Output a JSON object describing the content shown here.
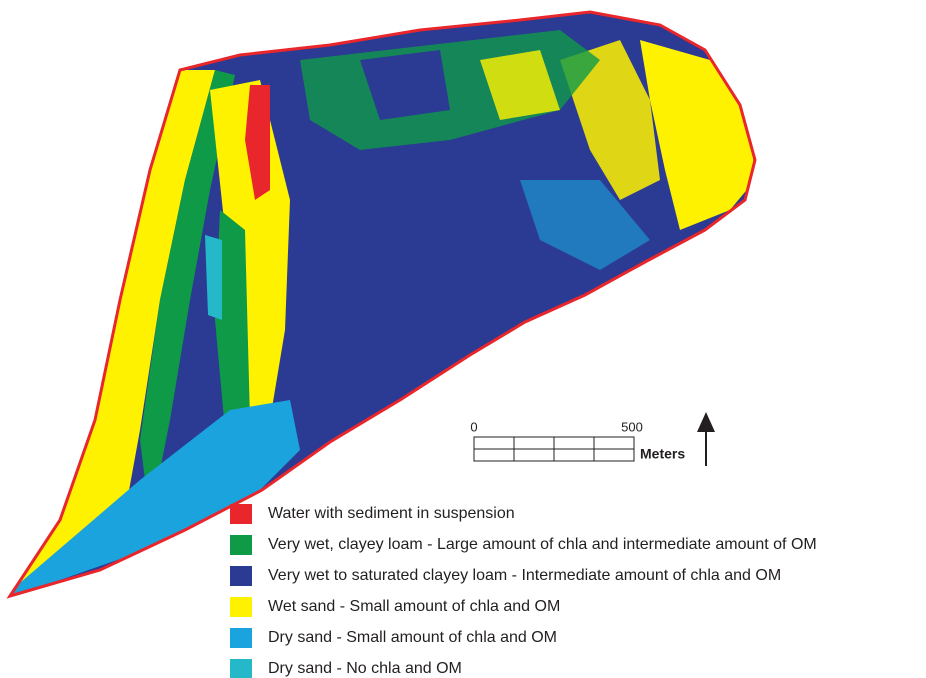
{
  "scale_bar": {
    "start_label": "0",
    "end_label": "500",
    "unit": "Meters"
  },
  "legend": {
    "items": [
      {
        "label": "Water with sediment in suspension",
        "color": "#e8262b"
      },
      {
        "label": "Very wet, clayey loam - Large amount of chla and intermediate amount of OM",
        "color": "#0f9a48"
      },
      {
        "label": "Very wet to saturated clayey loam - Intermediate amount of chla and OM",
        "color": "#2b3a92"
      },
      {
        "label": "Wet sand - Small amount of chla and OM",
        "color": "#fff200"
      },
      {
        "label": "Dry sand - Small amount of chla and OM",
        "color": "#1aa3dc"
      },
      {
        "label": "Dry sand - No chla and OM",
        "color": "#25b8c8"
      }
    ]
  }
}
